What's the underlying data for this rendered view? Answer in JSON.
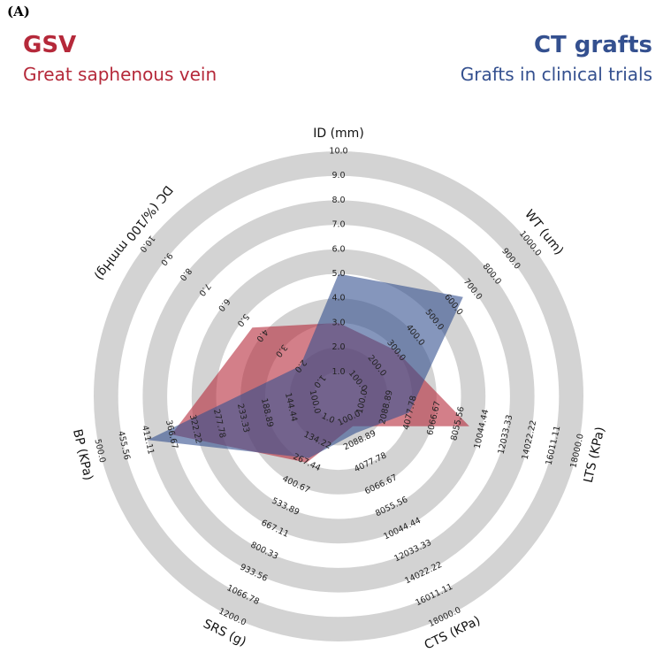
{
  "panel_label": "(A)",
  "colors": {
    "gsv": "#b5293a",
    "ct": "#34508f",
    "ring": "#d3d3d3"
  },
  "legend": {
    "left_title": "GSV",
    "left_subtitle": "Great saphenous vein",
    "right_title": "CT grafts",
    "right_subtitle": "Grafts in clinical trials"
  },
  "chart_data": {
    "type": "radar",
    "axes": [
      {
        "label": "ID (mm)",
        "ticks": [
          "1.0",
          "2.0",
          "3.0",
          "4.0",
          "5.0",
          "6.0",
          "7.0",
          "8.0",
          "9.0",
          "10.0"
        ],
        "min": 1,
        "max": 10
      },
      {
        "label": "WT (um)",
        "ticks": [
          "100.0",
          "200.0",
          "300.0",
          "400.0",
          "500.0",
          "600.0",
          "700.0",
          "800.0",
          "900.0",
          "1000.0"
        ],
        "min": 100,
        "max": 1000
      },
      {
        "label": "LTS (KPa)",
        "ticks": [
          "100.0",
          "2088.89",
          "4077.78",
          "6066.67",
          "8055.56",
          "10044.44",
          "12033.33",
          "14022.22",
          "16011.11",
          "18000.0"
        ],
        "min": 100,
        "max": 18000
      },
      {
        "label": "CTS (KPa)",
        "ticks": [
          "100.0",
          "2088.89",
          "4077.78",
          "6066.67",
          "8055.56",
          "10044.44",
          "12033.33",
          "14022.22",
          "16011.11",
          "18000.0"
        ],
        "min": 100,
        "max": 18000
      },
      {
        "label": "SRS (g)",
        "ticks": [
          "1.0",
          "134.22",
          "267.44",
          "400.67",
          "533.89",
          "667.11",
          "800.33",
          "933.56",
          "1066.78",
          "1200.0"
        ],
        "min": 1,
        "max": 1200
      },
      {
        "label": "BP (KPa)",
        "ticks": [
          "100.0",
          "144.44",
          "188.89",
          "233.33",
          "277.78",
          "322.22",
          "366.67",
          "411.11",
          "455.56",
          "500.0"
        ],
        "min": 100,
        "max": 500
      },
      {
        "label": "DC (%/100 mmHg)",
        "ticks": [
          "1.0",
          "2.0",
          "3.0",
          "4.0",
          "5.0",
          "6.0",
          "7.0",
          "8.0",
          "9.0",
          "10.0"
        ],
        "min": 1,
        "max": 10
      }
    ],
    "series": [
      {
        "name": "GSV",
        "color": "#b5293a",
        "values": [
          3.0,
          300.0,
          9000.0,
          800.0,
          267.44,
          366.67,
          4.5
        ]
      },
      {
        "name": "CT grafts",
        "color": "#34508f",
        "values": [
          5.0,
          650.0,
          4000.0,
          1400.0,
          240.0,
          411.11,
          2.0
        ]
      }
    ]
  }
}
